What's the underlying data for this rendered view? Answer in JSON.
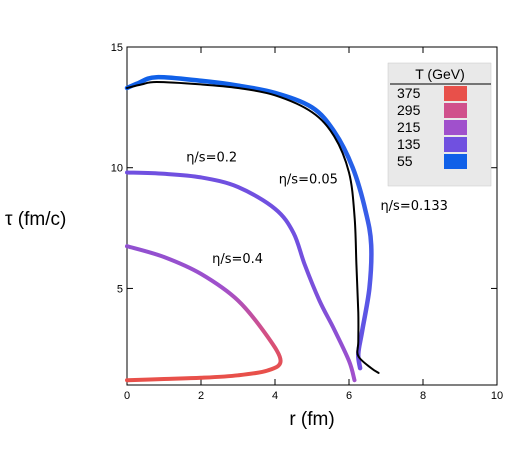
{
  "chart_data": {
    "type": "line",
    "title": "",
    "xlabel": "r (fm)",
    "ylabel": "τ (fm/c)",
    "xlim": [
      0,
      10
    ],
    "ylim": [
      1,
      15
    ],
    "xticks": [
      "0",
      "2",
      "4",
      "6",
      "8",
      "10"
    ],
    "yticks": [
      "5",
      "10",
      "15"
    ],
    "grid": false,
    "legend": {
      "title": "T (GeV)",
      "placement": "top-right",
      "entries": [
        {
          "label": "375",
          "color": "#e8504a"
        },
        {
          "label": "295",
          "color": "#d0508c"
        },
        {
          "label": "215",
          "color": "#a050cc"
        },
        {
          "label": "135",
          "color": "#7050e0"
        },
        {
          "label": "55",
          "color": "#1060e8"
        }
      ]
    },
    "series": [
      {
        "name": "η/s=0.4",
        "color_stops": [
          "#e8504a",
          "#d0508c",
          "#a050cc",
          "#9050d0"
        ],
        "points": [
          [
            0,
            1.2
          ],
          [
            1,
            1.25
          ],
          [
            2,
            1.3
          ],
          [
            3,
            1.4
          ],
          [
            3.8,
            1.6
          ],
          [
            4.15,
            2.0
          ],
          [
            3.8,
            3.0
          ],
          [
            3.0,
            4.5
          ],
          [
            2.0,
            5.6
          ],
          [
            1.0,
            6.3
          ],
          [
            0,
            6.75
          ]
        ]
      },
      {
        "name": "η/s=0.2",
        "color_stops": [
          "#a050cc",
          "#8050d8",
          "#7050e0",
          "#7050e0"
        ],
        "points": [
          [
            0,
            9.8
          ],
          [
            1,
            9.75
          ],
          [
            2,
            9.6
          ],
          [
            3,
            9.2
          ],
          [
            4,
            8.3
          ],
          [
            4.5,
            7.3
          ],
          [
            4.8,
            6.0
          ],
          [
            5.2,
            4.5
          ],
          [
            5.6,
            3.3
          ],
          [
            6.0,
            2.0
          ],
          [
            6.15,
            1.2
          ]
        ]
      },
      {
        "name": "η/s=0.05",
        "color": "#000000",
        "points": [
          [
            0,
            13.3
          ],
          [
            0.4,
            13.45
          ],
          [
            0.8,
            13.55
          ],
          [
            2,
            13.45
          ],
          [
            3,
            13.3
          ],
          [
            4,
            13.0
          ],
          [
            5,
            12.3
          ],
          [
            5.6,
            11.3
          ],
          [
            6.0,
            9.8
          ],
          [
            6.15,
            8.0
          ],
          [
            6.2,
            6.0
          ],
          [
            6.25,
            4.0
          ],
          [
            6.25,
            2.8
          ],
          [
            6.25,
            2.2
          ],
          [
            6.6,
            1.7
          ],
          [
            6.8,
            1.5
          ]
        ]
      },
      {
        "name": "η/s=0.133",
        "color_stops": [
          "#7050e0",
          "#5058e8",
          "#2a60e8",
          "#1060e8"
        ],
        "points": [
          [
            0,
            13.3
          ],
          [
            0.3,
            13.5
          ],
          [
            0.8,
            13.75
          ],
          [
            2,
            13.6
          ],
          [
            3,
            13.4
          ],
          [
            4,
            13.1
          ],
          [
            5,
            12.5
          ],
          [
            5.6,
            11.5
          ],
          [
            6.1,
            10.0
          ],
          [
            6.45,
            8.2
          ],
          [
            6.6,
            6.8
          ],
          [
            6.55,
            5.0
          ],
          [
            6.35,
            3.2
          ],
          [
            6.25,
            2.3
          ],
          [
            6.3,
            1.7
          ]
        ]
      }
    ],
    "annotations": [
      {
        "text": "η/s=0.2",
        "x": 1.6,
        "y": 10.25
      },
      {
        "text": "η/s=0.05",
        "x": 4.1,
        "y": 9.35
      },
      {
        "text": "η/s=0.133",
        "x": 6.85,
        "y": 8.25
      },
      {
        "text": "η/s=0.4",
        "x": 2.3,
        "y": 6.05
      }
    ]
  }
}
